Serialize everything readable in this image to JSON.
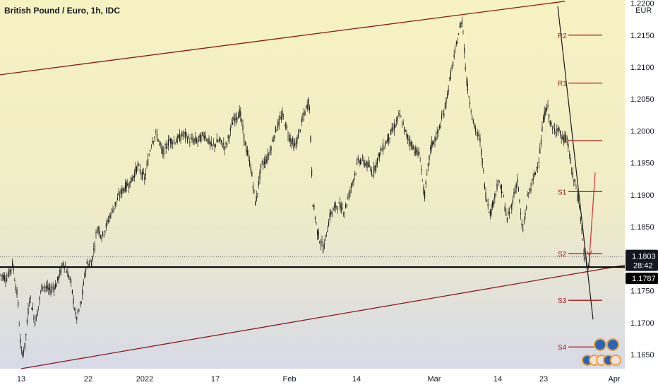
{
  "header": {
    "title": "British Pound / Euro, 1h, IDC",
    "currency": "EUR"
  },
  "colors": {
    "background_top": "#f7f2c2",
    "background_bottom": "#d7dae8",
    "candle": "#1a1a1a",
    "trendline": "#8b1a1a",
    "pivot": "#a31919",
    "support_line": "#000000",
    "price_badge": "#131722"
  },
  "chart_data": {
    "type": "candlestick",
    "title": "British Pound / Euro, 1h, IDC",
    "yaxis": {
      "ticks": [
        "1.1650",
        "1.1700",
        "1.1750",
        "1.1800",
        "1.1850",
        "1.1900",
        "1.1950",
        "1.2000",
        "1.2050",
        "1.2100",
        "1.2150",
        "1.2200"
      ],
      "range": [
        1.1628,
        1.2205
      ]
    },
    "xaxis": {
      "ticks": [
        "13",
        "22",
        "2022",
        "17",
        "Feb",
        "14",
        "Mar",
        "14",
        "23",
        "Apr"
      ],
      "tick_index": [
        30,
        125,
        205,
        305,
        410,
        505,
        615,
        705,
        770,
        870
      ],
      "range": [
        0,
        885
      ]
    },
    "price_path": [
      [
        0,
        1.1775
      ],
      [
        10,
        1.177
      ],
      [
        18,
        1.1792
      ],
      [
        25,
        1.1738
      ],
      [
        30,
        1.165
      ],
      [
        35,
        1.166
      ],
      [
        42,
        1.1742
      ],
      [
        50,
        1.17
      ],
      [
        60,
        1.176
      ],
      [
        70,
        1.175
      ],
      [
        80,
        1.176
      ],
      [
        90,
        1.1795
      ],
      [
        100,
        1.1765
      ],
      [
        108,
        1.1705
      ],
      [
        115,
        1.173
      ],
      [
        122,
        1.179
      ],
      [
        130,
        1.1795
      ],
      [
        138,
        1.185
      ],
      [
        145,
        1.1835
      ],
      [
        155,
        1.1865
      ],
      [
        165,
        1.189
      ],
      [
        175,
        1.191
      ],
      [
        185,
        1.192
      ],
      [
        195,
        1.1945
      ],
      [
        205,
        1.1925
      ],
      [
        215,
        1.1985
      ],
      [
        222,
        1.1995
      ],
      [
        230,
        1.1965
      ],
      [
        240,
        1.1985
      ],
      [
        250,
        1.1985
      ],
      [
        260,
        1.1995
      ],
      [
        270,
        1.1985
      ],
      [
        280,
        1.1985
      ],
      [
        290,
        1.1995
      ],
      [
        300,
        1.1975
      ],
      [
        310,
        1.1985
      ],
      [
        320,
        1.1975
      ],
      [
        330,
        1.2015
      ],
      [
        340,
        1.203
      ],
      [
        348,
        1.1975
      ],
      [
        355,
        1.1945
      ],
      [
        362,
        1.1885
      ],
      [
        370,
        1.1945
      ],
      [
        380,
        1.196
      ],
      [
        390,
        1.2
      ],
      [
        400,
        1.2025
      ],
      [
        410,
        1.199
      ],
      [
        418,
        1.1975
      ],
      [
        428,
        1.2015
      ],
      [
        438,
        1.205
      ],
      [
        443,
        1.189
      ],
      [
        450,
        1.184
      ],
      [
        458,
        1.1815
      ],
      [
        468,
        1.187
      ],
      [
        478,
        1.1885
      ],
      [
        488,
        1.1875
      ],
      [
        498,
        1.1915
      ],
      [
        508,
        1.1955
      ],
      [
        518,
        1.195
      ],
      [
        528,
        1.1935
      ],
      [
        538,
        1.1965
      ],
      [
        548,
        1.1985
      ],
      [
        558,
        1.2005
      ],
      [
        566,
        1.2025
      ],
      [
        575,
        1.1995
      ],
      [
        585,
        1.1975
      ],
      [
        595,
        1.196
      ],
      [
        601,
        1.1895
      ],
      [
        610,
        1.1975
      ],
      [
        620,
        1.1995
      ],
      [
        630,
        1.2035
      ],
      [
        638,
        1.2085
      ],
      [
        645,
        1.2125
      ],
      [
        650,
        1.2155
      ],
      [
        655,
        1.2175
      ],
      [
        660,
        1.2085
      ],
      [
        665,
        1.205
      ],
      [
        672,
        1.2005
      ],
      [
        680,
        1.1985
      ],
      [
        688,
        1.19
      ],
      [
        695,
        1.187
      ],
      [
        705,
        1.192
      ],
      [
        712,
        1.1905
      ],
      [
        718,
        1.186
      ],
      [
        725,
        1.1885
      ],
      [
        733,
        1.1925
      ],
      [
        740,
        1.184
      ],
      [
        748,
        1.19
      ],
      [
        756,
        1.1925
      ],
      [
        764,
        1.196
      ],
      [
        770,
        1.202
      ],
      [
        775,
        1.204
      ],
      [
        782,
        1.2
      ],
      [
        790,
        1.2005
      ],
      [
        797,
        1.1985
      ],
      [
        803,
        1.199
      ],
      [
        810,
        1.1935
      ],
      [
        815,
        1.1915
      ],
      [
        820,
        1.189
      ],
      [
        825,
        1.1835
      ],
      [
        828,
        1.18
      ],
      [
        832,
        1.1782
      ],
      [
        836,
        1.1803
      ]
    ],
    "pivots": [
      {
        "label": "R2",
        "value": 1.215
      },
      {
        "label": "R1",
        "value": 1.2075
      },
      {
        "label": "",
        "value": 1.1985
      },
      {
        "label": "S1",
        "value": 1.1905
      },
      {
        "label": "S2",
        "value": 1.1808
      },
      {
        "label": "S3",
        "value": 1.1735
      },
      {
        "label": "S4",
        "value": 1.1662
      }
    ],
    "lines": {
      "upper_channel": [
        [
          0,
          1.2088
        ],
        [
          800,
          1.2203
        ]
      ],
      "lower_channel": [
        [
          30,
          1.1628
        ],
        [
          885,
          1.179
        ]
      ],
      "downtrend": [
        [
          790,
          1.2195
        ],
        [
          840,
          1.1705
        ]
      ],
      "support_level": 1.1787,
      "arrow": [
        [
          835,
          1.1805
        ],
        [
          843,
          1.1935
        ]
      ]
    },
    "last_price": {
      "value": "1.1803",
      "countdown": "28:42"
    },
    "level_badge": "1.1787"
  }
}
